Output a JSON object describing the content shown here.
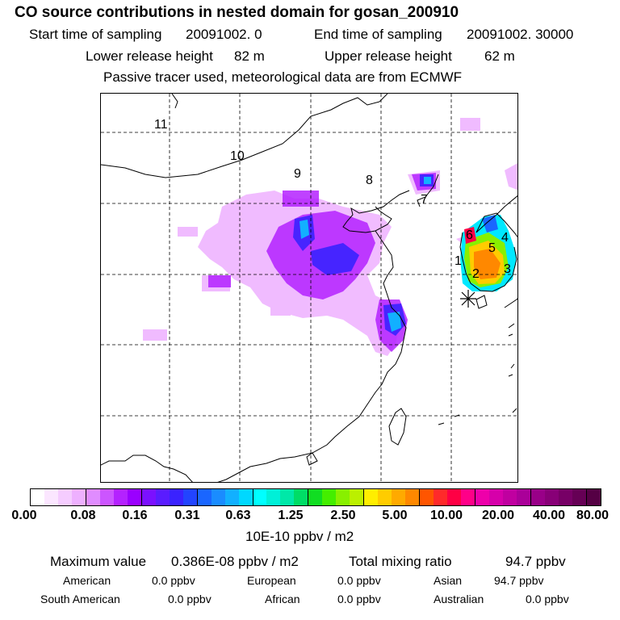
{
  "title": "CO  source contributions in nested domain for gosan_200910",
  "sampling": {
    "start_label": "Start time of sampling",
    "start_value": "20091002.     0",
    "end_label": "End time of sampling",
    "end_value": "20091002. 30000"
  },
  "release": {
    "lower_label": "Lower release height",
    "lower_value": "82 m",
    "upper_label": "Upper release height",
    "upper_value": "62 m"
  },
  "tracer_note": "Passive tracer used, meteorological data are from ECMWF",
  "map": {
    "region_labels": [
      "1",
      "2",
      "3",
      "4",
      "5",
      "6",
      "7",
      "8",
      "9",
      "10",
      "11"
    ],
    "receptor_marker": "receptor-asterisk"
  },
  "colorbar": {
    "tick_labels": [
      "0.00",
      "0.08",
      "0.16",
      "0.31",
      "0.63",
      "1.25",
      "2.50",
      "5.00",
      "10.00",
      "20.00",
      "40.00",
      "80.00"
    ],
    "unit": "10E-10 ppbv / m2",
    "colors": [
      "#ffffff",
      "#fbe6ff",
      "#f5ccff",
      "#eeb0ff",
      "#e08cff",
      "#cc55ff",
      "#b422ff",
      "#9a00ff",
      "#7b10ff",
      "#5a1cff",
      "#3a22ff",
      "#2244ff",
      "#1a66ff",
      "#1a8cff",
      "#12b0ff",
      "#00d8ff",
      "#00ffff",
      "#00f0d8",
      "#00e8a8",
      "#00dd66",
      "#11dd22",
      "#44ee00",
      "#88f000",
      "#bbf000",
      "#ffee00",
      "#ffcc00",
      "#ffaa00",
      "#ff8800",
      "#ff5500",
      "#ff2a2a",
      "#ff0044",
      "#ff0088",
      "#ee00aa",
      "#d600aa",
      "#c000a0",
      "#aa0099",
      "#990088",
      "#880077",
      "#770066",
      "#660055",
      "#550044"
    ]
  },
  "stats": {
    "max_label": "Maximum value",
    "max_value": "0.386E-08 ppbv / m2",
    "total_label": "Total mixing ratio",
    "total_value": "94.7 ppbv",
    "regions": [
      {
        "name": "American",
        "value": "0.0 ppbv"
      },
      {
        "name": "European",
        "value": "0.0 ppbv"
      },
      {
        "name": "Asian",
        "value": "94.7 ppbv"
      },
      {
        "name": "South American",
        "value": "0.0 ppbv"
      },
      {
        "name": "African",
        "value": "0.0 ppbv"
      },
      {
        "name": "Australian",
        "value": "0.0 ppbv"
      }
    ]
  }
}
